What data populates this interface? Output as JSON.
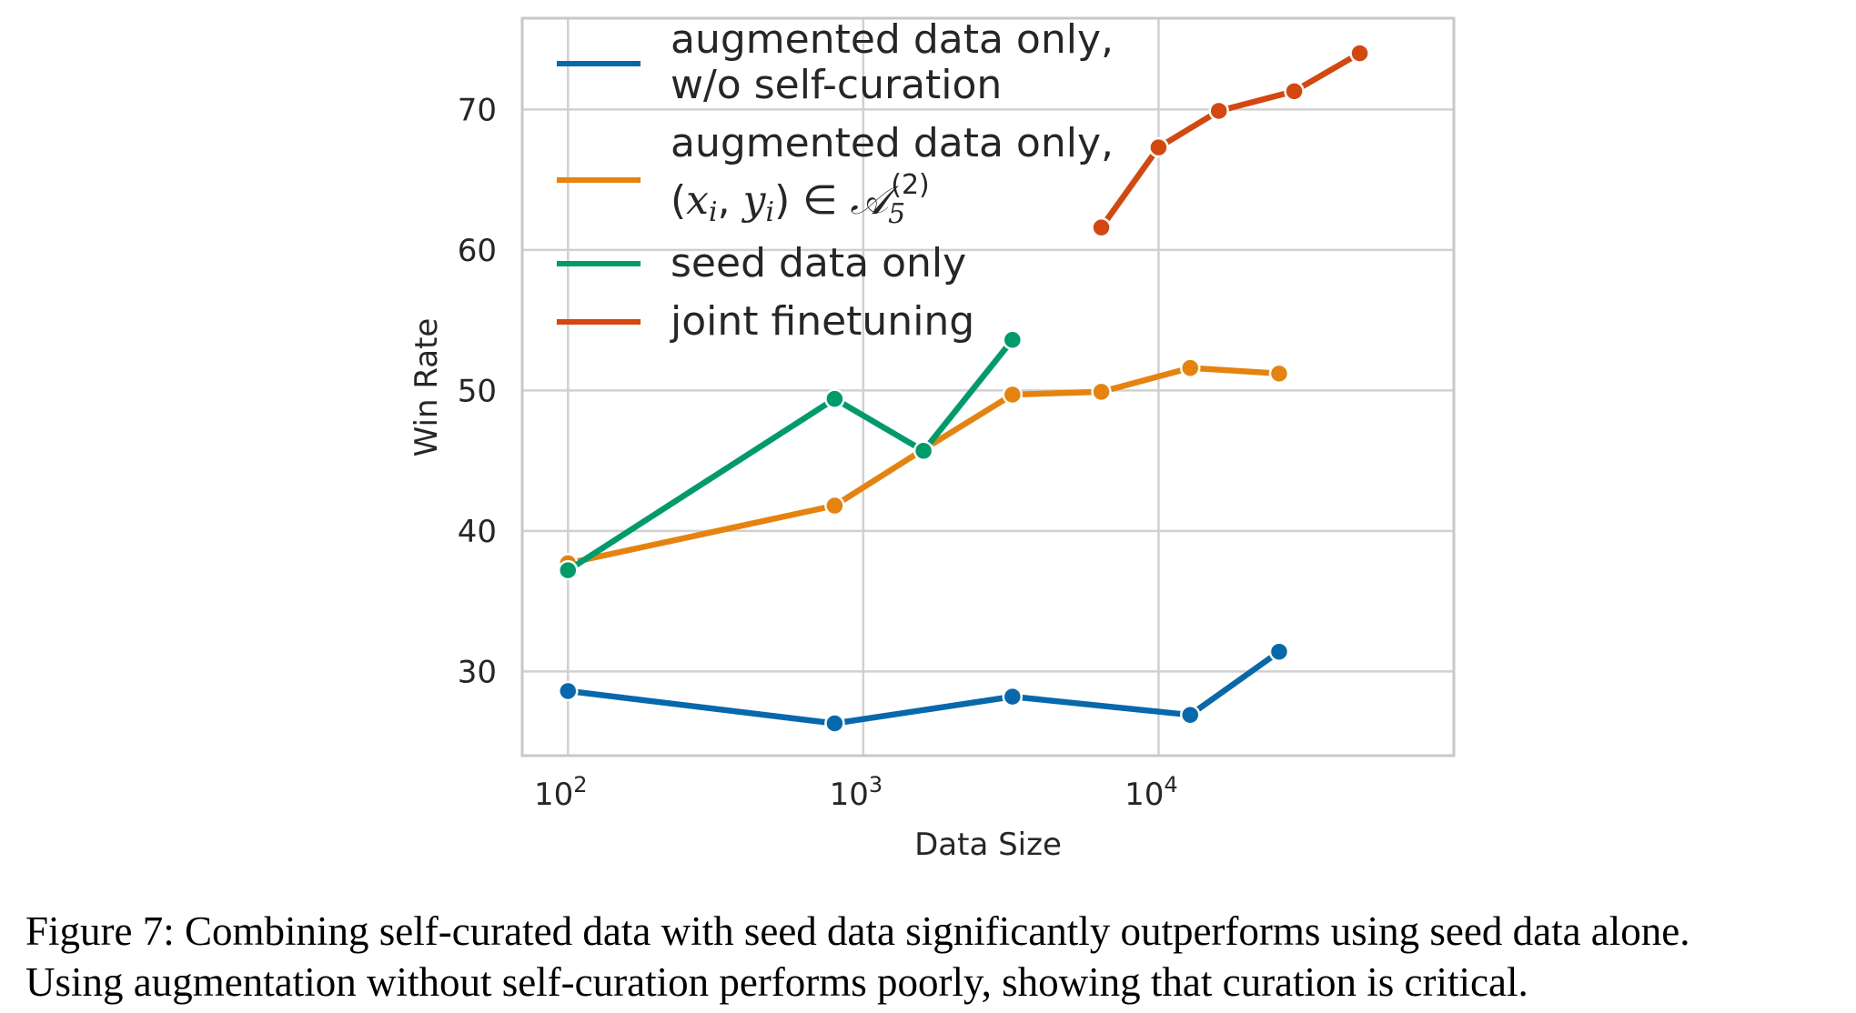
{
  "chart_data": {
    "type": "line",
    "xlabel": "Data Size",
    "ylabel": "Win Rate",
    "xscale": "log",
    "xlim": [
      70,
      100000
    ],
    "ylim": [
      24,
      76.5
    ],
    "x_ticks": [
      {
        "value": 100,
        "base": "10",
        "exp": "2"
      },
      {
        "value": 1000,
        "base": "10",
        "exp": "3"
      },
      {
        "value": 10000,
        "base": "10",
        "exp": "4"
      }
    ],
    "y_ticks": [
      30,
      40,
      50,
      60,
      70
    ],
    "grid": true,
    "legend_position": "top-left",
    "series": [
      {
        "name_line1": "augmented data only,",
        "name_line2": "w/o self-curation",
        "color": "#0868ac",
        "points": [
          [
            100,
            28.6
          ],
          [
            800,
            26.3
          ],
          [
            3200,
            28.2
          ],
          [
            12800,
            26.9
          ],
          [
            25600,
            31.4
          ]
        ]
      },
      {
        "name_line1": "augmented data only,",
        "name_math": "(xi, yi) ∈ A5(2)",
        "color": "#e6820e",
        "points": [
          [
            100,
            37.7
          ],
          [
            800,
            41.8
          ],
          [
            1600,
            45.8
          ],
          [
            3200,
            49.7
          ],
          [
            6400,
            49.9
          ],
          [
            12800,
            51.6
          ],
          [
            25600,
            51.2
          ]
        ]
      },
      {
        "name": "seed data only",
        "color": "#009b6b",
        "points": [
          [
            100,
            37.2
          ],
          [
            800,
            49.4
          ],
          [
            1600,
            45.7
          ],
          [
            3200,
            53.6
          ]
        ]
      },
      {
        "name": "joint finetuning",
        "color": "#d4470e",
        "points": [
          [
            6400,
            61.6
          ],
          [
            10000,
            67.3
          ],
          [
            16000,
            69.9
          ],
          [
            28800,
            71.3
          ],
          [
            48000,
            74.0
          ]
        ]
      }
    ]
  },
  "caption": {
    "line1": "Figure 7: Combining self-curated data with seed data significantly outperforms using seed data alone.",
    "line2": "Using augmentation without self-curation performs poorly, showing that curation is critical."
  }
}
